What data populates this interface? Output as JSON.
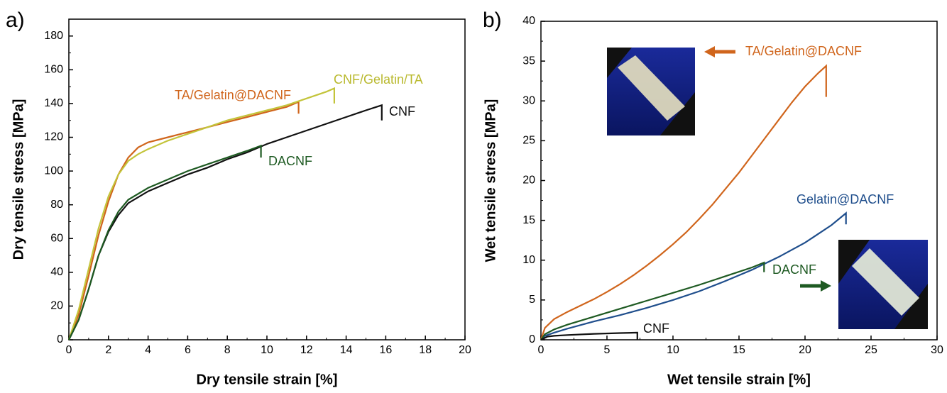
{
  "chart_data": [
    {
      "type": "line",
      "panel_label": "a)",
      "x_label": "Dry tensile strain [%]",
      "y_label": "Dry tensile stress [MPa]",
      "xlim": [
        0,
        20
      ],
      "xticks": [
        0,
        2,
        4,
        6,
        8,
        10,
        12,
        14,
        16,
        18,
        20
      ],
      "ylim": [
        0,
        190
      ],
      "yticks": [
        0,
        20,
        40,
        60,
        80,
        100,
        120,
        140,
        160,
        180
      ],
      "series": [
        {
          "name": "TA/Gelatin@DACNF",
          "color": "#d0651c",
          "x": [
            0,
            0.5,
            1,
            1.5,
            2,
            2.5,
            3,
            3.5,
            4,
            5,
            6,
            7,
            8,
            9,
            10,
            11,
            11.6,
            11.6
          ],
          "values": [
            0,
            15,
            38,
            62,
            82,
            98,
            108,
            114,
            117,
            120,
            123,
            126,
            129,
            132,
            135,
            138,
            141,
            134
          ]
        },
        {
          "name": "CNF/Gelatin/TA",
          "color": "#c3c43a",
          "x": [
            0,
            0.5,
            1,
            1.5,
            2,
            2.5,
            3,
            3.5,
            4,
            5,
            6,
            7,
            8,
            9,
            10,
            11,
            12,
            13,
            13.4,
            13.4
          ],
          "values": [
            0,
            18,
            42,
            66,
            85,
            98,
            106,
            110,
            113,
            118,
            122,
            126,
            130,
            133,
            136,
            139,
            143,
            147,
            149,
            140
          ]
        },
        {
          "name": "CNF",
          "color": "#111111",
          "x": [
            0,
            0.5,
            1,
            1.5,
            2,
            2.5,
            3,
            4,
            5,
            6,
            7,
            8,
            9,
            10,
            11,
            12,
            13,
            14,
            15,
            15.8,
            15.8
          ],
          "values": [
            0,
            12,
            30,
            50,
            64,
            74,
            81,
            88,
            93,
            98,
            102,
            107,
            111,
            116,
            120,
            124,
            128,
            132,
            136,
            139,
            130
          ]
        },
        {
          "name": "DACNF",
          "color": "#1e5a22",
          "x": [
            0,
            0.5,
            1,
            1.5,
            2,
            2.5,
            3,
            4,
            5,
            6,
            7,
            8,
            9,
            9.7,
            9.7
          ],
          "values": [
            0,
            12,
            30,
            50,
            65,
            76,
            83,
            90,
            95,
            100,
            104,
            108,
            112,
            115,
            108
          ]
        }
      ]
    },
    {
      "type": "line",
      "panel_label": "b)",
      "x_label": "Wet tensile strain [%]",
      "y_label": "Wet tensile stress [MPa]",
      "xlim": [
        0,
        30
      ],
      "xticks": [
        0,
        5,
        10,
        15,
        20,
        25,
        30
      ],
      "ylim": [
        0,
        40
      ],
      "yticks": [
        0,
        5,
        10,
        15,
        20,
        25,
        30,
        35,
        40
      ],
      "series": [
        {
          "name": "TA/Gelatin@DACNF",
          "color": "#d0651c",
          "x": [
            0,
            0.3,
            1,
            2,
            3,
            4,
            5,
            6,
            7,
            8,
            9,
            10,
            11,
            12,
            13,
            14,
            15,
            16,
            17,
            18,
            19,
            20,
            21,
            21.6,
            21.6
          ],
          "values": [
            0,
            1.5,
            2.6,
            3.5,
            4.3,
            5.1,
            6,
            7,
            8.1,
            9.3,
            10.6,
            12,
            13.5,
            15.2,
            17,
            19,
            21,
            23.2,
            25.4,
            27.6,
            29.8,
            31.8,
            33.5,
            34.4,
            30.5
          ]
        },
        {
          "name": "Gelatin@DACNF",
          "color": "#1f4e8c",
          "x": [
            0,
            0.3,
            1,
            2,
            4,
            6,
            8,
            10,
            12,
            14,
            16,
            18,
            20,
            22,
            23.1,
            23.1
          ],
          "values": [
            0,
            0.5,
            0.9,
            1.4,
            2.3,
            3.1,
            4,
            5,
            6.1,
            7.4,
            8.8,
            10.4,
            12.2,
            14.4,
            15.9,
            14.5
          ]
        },
        {
          "name": "DACNF",
          "color": "#1e5a22",
          "x": [
            0,
            0.3,
            1,
            2,
            4,
            6,
            8,
            10,
            12,
            14,
            16,
            16.9,
            16.9
          ],
          "values": [
            0,
            0.7,
            1.3,
            1.9,
            2.9,
            3.9,
            4.9,
            5.9,
            6.9,
            8,
            9.1,
            9.7,
            8.5
          ]
        },
        {
          "name": "CNF",
          "color": "#111111",
          "x": [
            0,
            0.5,
            1,
            2,
            4,
            6,
            7.3,
            7.3
          ],
          "values": [
            0,
            0.4,
            0.5,
            0.6,
            0.75,
            0.85,
            0.9,
            0
          ]
        }
      ]
    }
  ]
}
